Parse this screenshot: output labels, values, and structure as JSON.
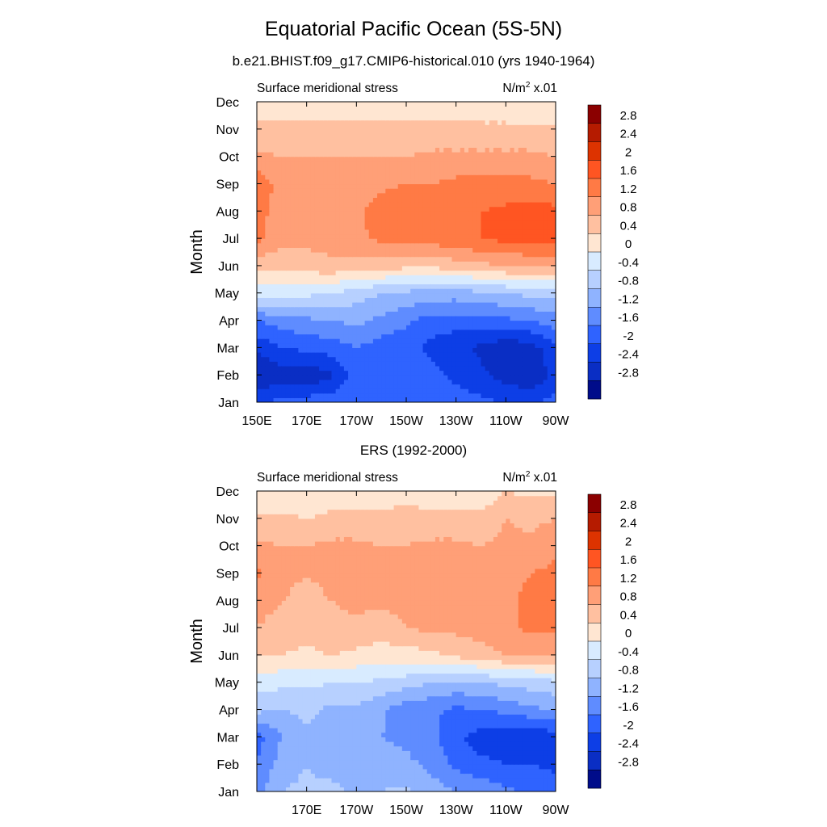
{
  "title": "Equatorial Pacific Ocean (5S-5N)",
  "colorbar": {
    "labels": [
      "2.8",
      "2.4",
      "2",
      "1.6",
      "1.2",
      "0.8",
      "0.4",
      "0",
      "-0.4",
      "-0.8",
      "-1.2",
      "-1.6",
      "-2",
      "-2.4",
      "-2.8"
    ],
    "colors": [
      "#8b0000",
      "#b51b00",
      "#dd3300",
      "#ff5522",
      "#ff7a45",
      "#ff9f77",
      "#ffc0a0",
      "#ffe6d2",
      "#d8ebff",
      "#b7d0ff",
      "#8fb3ff",
      "#5f8cff",
      "#2f63ff",
      "#0d3ee6",
      "#0a2ec4",
      "#000c8a"
    ]
  },
  "panels": [
    {
      "subtitle": "b.e21.BHIST.f09_g17.CMIP6-historical.010 (yrs 1940-1964)",
      "left_label": "Surface meridional stress",
      "units_main": "N/m",
      "units_sup": "2",
      "units_rest": " x.01",
      "ylabel": "Month",
      "x_ticks": [
        "150E",
        "170E",
        "170W",
        "150W",
        "130W",
        "110W",
        "90W"
      ],
      "y_ticks": [
        "Jan",
        "Feb",
        "Mar",
        "Apr",
        "May",
        "Jun",
        "Jul",
        "Aug",
        "Sep",
        "Oct",
        "Nov",
        "Dec"
      ]
    },
    {
      "subtitle": "ERS (1992-2000)",
      "left_label": "Surface meridional stress",
      "units_main": "N/m",
      "units_sup": "2",
      "units_rest": " x.01",
      "ylabel": "Month",
      "x_ticks": [
        "",
        "170E",
        "170W",
        "150W",
        "130W",
        "110W",
        "90W"
      ],
      "y_ticks": [
        "Jan",
        "Feb",
        "Mar",
        "Apr",
        "May",
        "Jun",
        "Jul",
        "Aug",
        "Sep",
        "Oct",
        "Nov",
        "Dec"
      ]
    }
  ],
  "chart_data": [
    {
      "type": "heatmap",
      "title": "b.e21.BHIST.f09_g17.CMIP6-historical.010 (yrs 1940-1964)",
      "variable": "Surface meridional stress",
      "units": "N/m2 x.01",
      "xlabel": "",
      "ylabel": "Month",
      "x": [
        "150E",
        "160E",
        "170E",
        "180",
        "170W",
        "160W",
        "150W",
        "140W",
        "130W",
        "120W",
        "110W",
        "100W",
        "90W"
      ],
      "y": [
        "Jan",
        "Feb",
        "Mar",
        "Apr",
        "May",
        "Jun",
        "Jul",
        "Aug",
        "Sep",
        "Oct",
        "Nov",
        "Dec"
      ],
      "z": [
        [
          -2.0,
          -1.9,
          -1.8,
          -1.7,
          -1.6,
          -1.6,
          -1.6,
          -1.7,
          -1.8,
          -1.9,
          -2.0,
          -2.0,
          -1.9
        ],
        [
          -2.8,
          -2.6,
          -2.7,
          -2.5,
          -1.7,
          -1.6,
          -1.7,
          -1.9,
          -2.1,
          -2.3,
          -2.6,
          -2.8,
          -2.2
        ],
        [
          -2.3,
          -2.0,
          -1.9,
          -1.8,
          -1.6,
          -1.8,
          -1.9,
          -2.1,
          -2.3,
          -2.5,
          -2.7,
          -2.6,
          -2.1
        ],
        [
          -1.6,
          -1.4,
          -1.3,
          -1.2,
          -1.1,
          -1.3,
          -1.5,
          -1.8,
          -1.8,
          -1.8,
          -1.7,
          -1.6,
          -1.4
        ],
        [
          -0.2,
          -0.2,
          -0.3,
          -0.4,
          -0.6,
          -0.8,
          -0.9,
          -1.0,
          -1.0,
          -0.9,
          -0.8,
          -0.7,
          -0.6
        ],
        [
          0.6,
          0.5,
          0.6,
          0.7,
          0.6,
          0.6,
          0.5,
          0.5,
          0.6,
          0.7,
          0.8,
          0.8,
          0.8
        ],
        [
          1.3,
          0.9,
          0.9,
          1.0,
          1.1,
          1.3,
          1.3,
          1.4,
          1.5,
          1.6,
          1.7,
          1.8,
          1.8
        ],
        [
          1.3,
          1.1,
          1.0,
          1.0,
          1.1,
          1.4,
          1.5,
          1.5,
          1.5,
          1.6,
          1.7,
          1.8,
          1.7
        ],
        [
          1.5,
          1.0,
          1.0,
          1.0,
          1.0,
          1.1,
          1.2,
          1.2,
          1.3,
          1.3,
          1.3,
          1.3,
          1.2
        ],
        [
          0.9,
          0.8,
          0.8,
          0.8,
          0.8,
          0.8,
          0.8,
          0.9,
          0.9,
          0.9,
          0.9,
          0.9,
          0.8
        ],
        [
          0.5,
          0.5,
          0.5,
          0.5,
          0.5,
          0.5,
          0.5,
          0.5,
          0.5,
          0.5,
          0.5,
          0.5,
          0.5
        ],
        [
          0.1,
          0.2,
          0.2,
          0.2,
          0.2,
          0.2,
          0.2,
          0.2,
          0.2,
          0.1,
          0.1,
          0.0,
          0.1
        ]
      ],
      "levels": [
        -2.8,
        -2.4,
        -2.0,
        -1.6,
        -1.2,
        -0.8,
        -0.4,
        0,
        0.4,
        0.8,
        1.2,
        1.6,
        2.0,
        2.4,
        2.8
      ],
      "xlim": [
        "150E",
        "90W"
      ],
      "grid": false
    },
    {
      "type": "heatmap",
      "title": "ERS (1992-2000)",
      "variable": "Surface meridional stress",
      "units": "N/m2 x.01",
      "xlabel": "",
      "ylabel": "Month",
      "x": [
        "150E",
        "160E",
        "170E",
        "180",
        "170W",
        "160W",
        "150W",
        "140W",
        "130W",
        "120W",
        "110W",
        "100W",
        "90W"
      ],
      "y": [
        "Jan",
        "Feb",
        "Mar",
        "Apr",
        "May",
        "Jun",
        "Jul",
        "Aug",
        "Sep",
        "Oct",
        "Nov",
        "Dec"
      ],
      "z": [
        [
          -1.4,
          -0.8,
          -0.7,
          -0.5,
          -1.0,
          -0.8,
          -0.7,
          -1.0,
          -1.2,
          -1.3,
          -1.5,
          -1.7,
          -1.8
        ],
        [
          -1.6,
          -1.0,
          -0.8,
          -1.2,
          -1.0,
          -1.0,
          -1.1,
          -1.3,
          -1.7,
          -1.9,
          -2.0,
          -2.0,
          -2.1
        ],
        [
          -1.8,
          -1.2,
          -0.9,
          -1.0,
          -1.1,
          -1.2,
          -1.3,
          -1.5,
          -1.9,
          -2.2,
          -2.3,
          -2.4,
          -2.2
        ],
        [
          -0.7,
          -0.8,
          -0.7,
          -0.9,
          -0.9,
          -1.1,
          -1.5,
          -1.5,
          -1.7,
          -1.6,
          -1.5,
          -1.3,
          -1.2
        ],
        [
          -0.2,
          -0.3,
          -0.3,
          -0.4,
          -0.4,
          -0.5,
          -0.6,
          -0.8,
          -0.9,
          -0.8,
          -0.7,
          -0.6,
          -0.5
        ],
        [
          0.4,
          0.4,
          0.3,
          0.4,
          0.3,
          0.2,
          0.2,
          0.3,
          0.5,
          0.6,
          0.8,
          0.8,
          0.9
        ],
        [
          0.8,
          0.6,
          0.6,
          0.7,
          0.7,
          0.6,
          0.8,
          0.9,
          0.9,
          1.0,
          1.1,
          1.3,
          1.3
        ],
        [
          1.0,
          0.8,
          0.7,
          0.8,
          0.9,
          0.9,
          0.9,
          0.9,
          1.0,
          1.0,
          1.1,
          1.3,
          1.4
        ],
        [
          1.3,
          0.9,
          0.8,
          0.9,
          1.0,
          0.9,
          0.9,
          1.0,
          1.1,
          1.0,
          1.1,
          1.2,
          1.3
        ],
        [
          0.9,
          0.8,
          0.8,
          0.9,
          0.9,
          0.8,
          0.8,
          0.9,
          0.9,
          0.8,
          0.9,
          0.9,
          1.1
        ],
        [
          0.5,
          0.5,
          0.4,
          0.5,
          0.5,
          0.5,
          0.6,
          0.5,
          0.5,
          0.5,
          0.8,
          0.7,
          0.8
        ],
        [
          0.1,
          0.0,
          0.0,
          0.2,
          0.2,
          0.2,
          0.2,
          0.2,
          0.2,
          0.1,
          0.4,
          0.3,
          0.3
        ]
      ],
      "levels": [
        -2.8,
        -2.4,
        -2.0,
        -1.6,
        -1.2,
        -0.8,
        -0.4,
        0,
        0.4,
        0.8,
        1.2,
        1.6,
        2.0,
        2.4,
        2.8
      ],
      "xlim": [
        "150E",
        "90W"
      ],
      "grid": false
    }
  ]
}
